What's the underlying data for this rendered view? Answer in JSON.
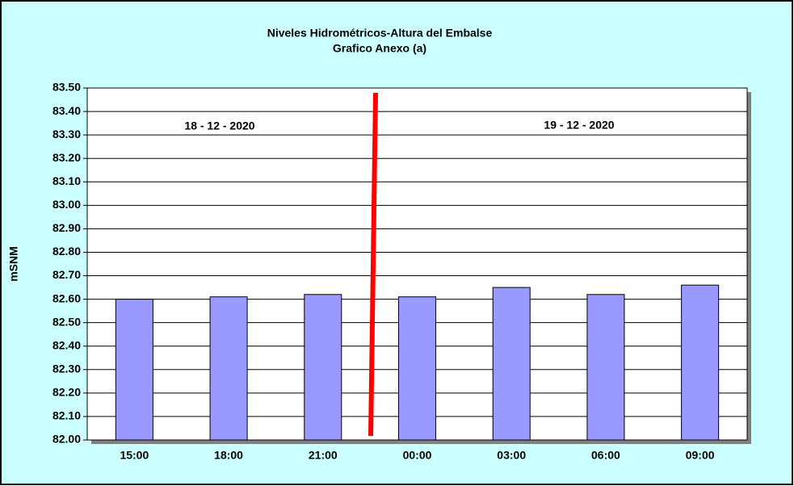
{
  "chart_data": {
    "type": "bar",
    "title": "Niveles Hidrométricos-Altura del Embalse",
    "subtitle": "Grafico Anexo (a)",
    "y_label": "mSNM",
    "annotations": [
      "18 - 12 - 2020",
      "19 - 12 - 2020"
    ],
    "categories": [
      "15:00",
      "18:00",
      "21:00",
      "00:00",
      "03:00",
      "06:00",
      "09:00"
    ],
    "values": [
      82.6,
      82.61,
      82.62,
      82.61,
      82.65,
      82.62,
      82.66
    ],
    "color": "#9999ff",
    "ylim": [
      82.0,
      83.5
    ],
    "yticks": [
      {
        "value": 82.0,
        "label": "82.00"
      },
      {
        "value": 82.1,
        "label": "82.10"
      },
      {
        "value": 82.2,
        "label": "82.20"
      },
      {
        "value": 82.3,
        "label": "82.30"
      },
      {
        "value": 82.4,
        "label": "82.40"
      },
      {
        "value": 82.5,
        "label": "82.50"
      },
      {
        "value": 82.6,
        "label": "82.60"
      },
      {
        "value": 82.7,
        "label": "82.70"
      },
      {
        "value": 82.8,
        "label": "82.80"
      },
      {
        "value": 82.9,
        "label": "82.90"
      },
      {
        "value": 83.0,
        "label": "83.00"
      },
      {
        "value": 83.1,
        "label": "83.10"
      },
      {
        "value": 83.2,
        "label": "83.20"
      },
      {
        "value": 83.3,
        "label": "83.30"
      },
      {
        "value": 83.4,
        "label": "83.40"
      },
      {
        "value": 83.5,
        "label": "83.50"
      }
    ],
    "grid": true
  }
}
